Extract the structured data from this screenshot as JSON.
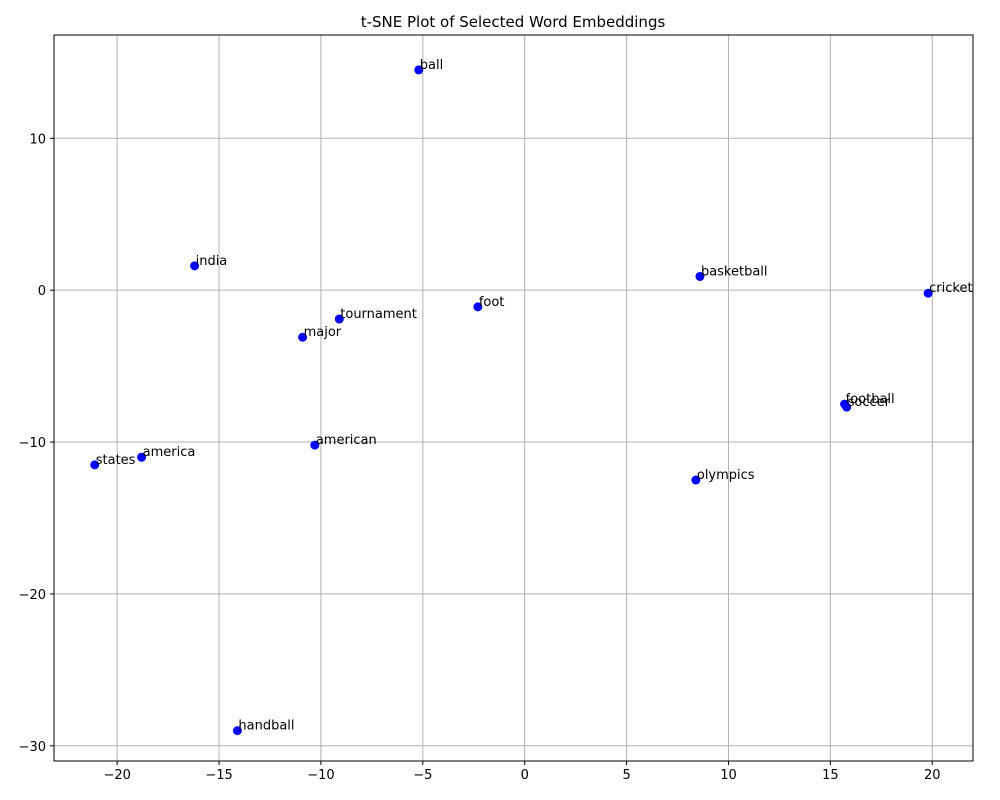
{
  "chart_data": {
    "type": "scatter",
    "title": "t-SNE Plot of Selected Word Embeddings",
    "xlabel": "",
    "ylabel": "",
    "xlim": [
      -23.1,
      22.0
    ],
    "ylim": [
      -31.0,
      16.8
    ],
    "xticks": [
      -20,
      -15,
      -10,
      -5,
      0,
      5,
      10,
      15,
      20
    ],
    "yticks": [
      10,
      0,
      -10,
      -20,
      -30
    ],
    "xtick_labels": [
      "−20",
      "−15",
      "−10",
      "−5",
      "0",
      "5",
      "10",
      "15",
      "20"
    ],
    "ytick_labels": [
      "10",
      "0",
      "−10",
      "−20",
      "−30"
    ],
    "grid": true,
    "marker_color": "#0000ff",
    "points": [
      {
        "label": "ball",
        "x": -5.2,
        "y": 14.5
      },
      {
        "label": "india",
        "x": -16.2,
        "y": 1.6
      },
      {
        "label": "basketball",
        "x": 8.6,
        "y": 0.9
      },
      {
        "label": "cricket",
        "x": 19.8,
        "y": -0.2
      },
      {
        "label": "foot",
        "x": -2.3,
        "y": -1.1
      },
      {
        "label": "tournament",
        "x": -9.1,
        "y": -1.9
      },
      {
        "label": "major",
        "x": -10.9,
        "y": -3.1
      },
      {
        "label": "football",
        "x": 15.7,
        "y": -7.5
      },
      {
        "label": "soccer",
        "x": 15.8,
        "y": -7.7
      },
      {
        "label": "american",
        "x": -10.3,
        "y": -10.2
      },
      {
        "label": "america",
        "x": -18.8,
        "y": -11.0
      },
      {
        "label": "states",
        "x": -21.1,
        "y": -11.5
      },
      {
        "label": "olympics",
        "x": 8.4,
        "y": -12.5
      },
      {
        "label": "handball",
        "x": -14.1,
        "y": -29.0
      }
    ]
  }
}
